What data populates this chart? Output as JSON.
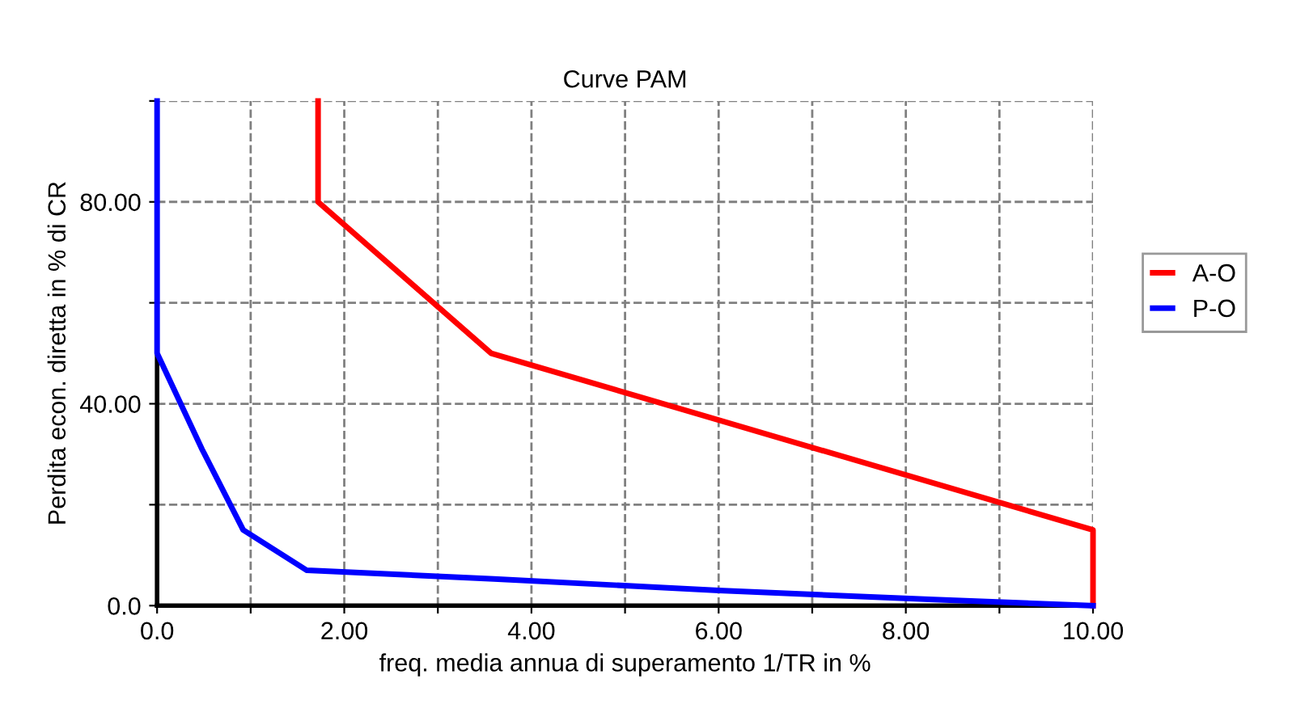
{
  "chart_data": {
    "type": "line",
    "title": "Curve PAM",
    "xlabel": "freq. media annua di superamento 1/TR in %",
    "ylabel": "Perdita econ. diretta in % di CR",
    "series": [
      {
        "name": "A-O",
        "color": "#ff0000",
        "x": [
          1.72,
          1.72,
          3.57,
          10,
          10
        ],
        "values": [
          100,
          80,
          50,
          15,
          0
        ]
      },
      {
        "name": "P-O",
        "color": "#0000ff",
        "x": [
          0,
          0,
          0.48,
          0.92,
          1.6,
          3.6,
          6,
          8.3,
          10
        ],
        "values": [
          100,
          50,
          31,
          15,
          7,
          5.3,
          3,
          1.2,
          0
        ]
      }
    ],
    "xlim": [
      0,
      10
    ],
    "ylim": [
      0,
      100
    ],
    "xticks": [
      {
        "value": 0,
        "label": "0.0"
      },
      {
        "value": 1,
        "label": null
      },
      {
        "value": 2,
        "label": "2.00"
      },
      {
        "value": 3,
        "label": null
      },
      {
        "value": 4,
        "label": "4.00"
      },
      {
        "value": 5,
        "label": null
      },
      {
        "value": 6,
        "label": "6.00"
      },
      {
        "value": 7,
        "label": null
      },
      {
        "value": 8,
        "label": "8.00"
      },
      {
        "value": 9,
        "label": null
      },
      {
        "value": 10,
        "label": "10.00"
      }
    ],
    "yticks": [
      {
        "value": 0,
        "label": "0.0"
      },
      {
        "value": 20,
        "label": null
      },
      {
        "value": 40,
        "label": "40.00"
      },
      {
        "value": 60,
        "label": null
      },
      {
        "value": 80,
        "label": "80.00"
      },
      {
        "value": 100,
        "label": null
      }
    ],
    "grid": true,
    "legend": "right",
    "line_style": "solid",
    "marker": "none"
  }
}
